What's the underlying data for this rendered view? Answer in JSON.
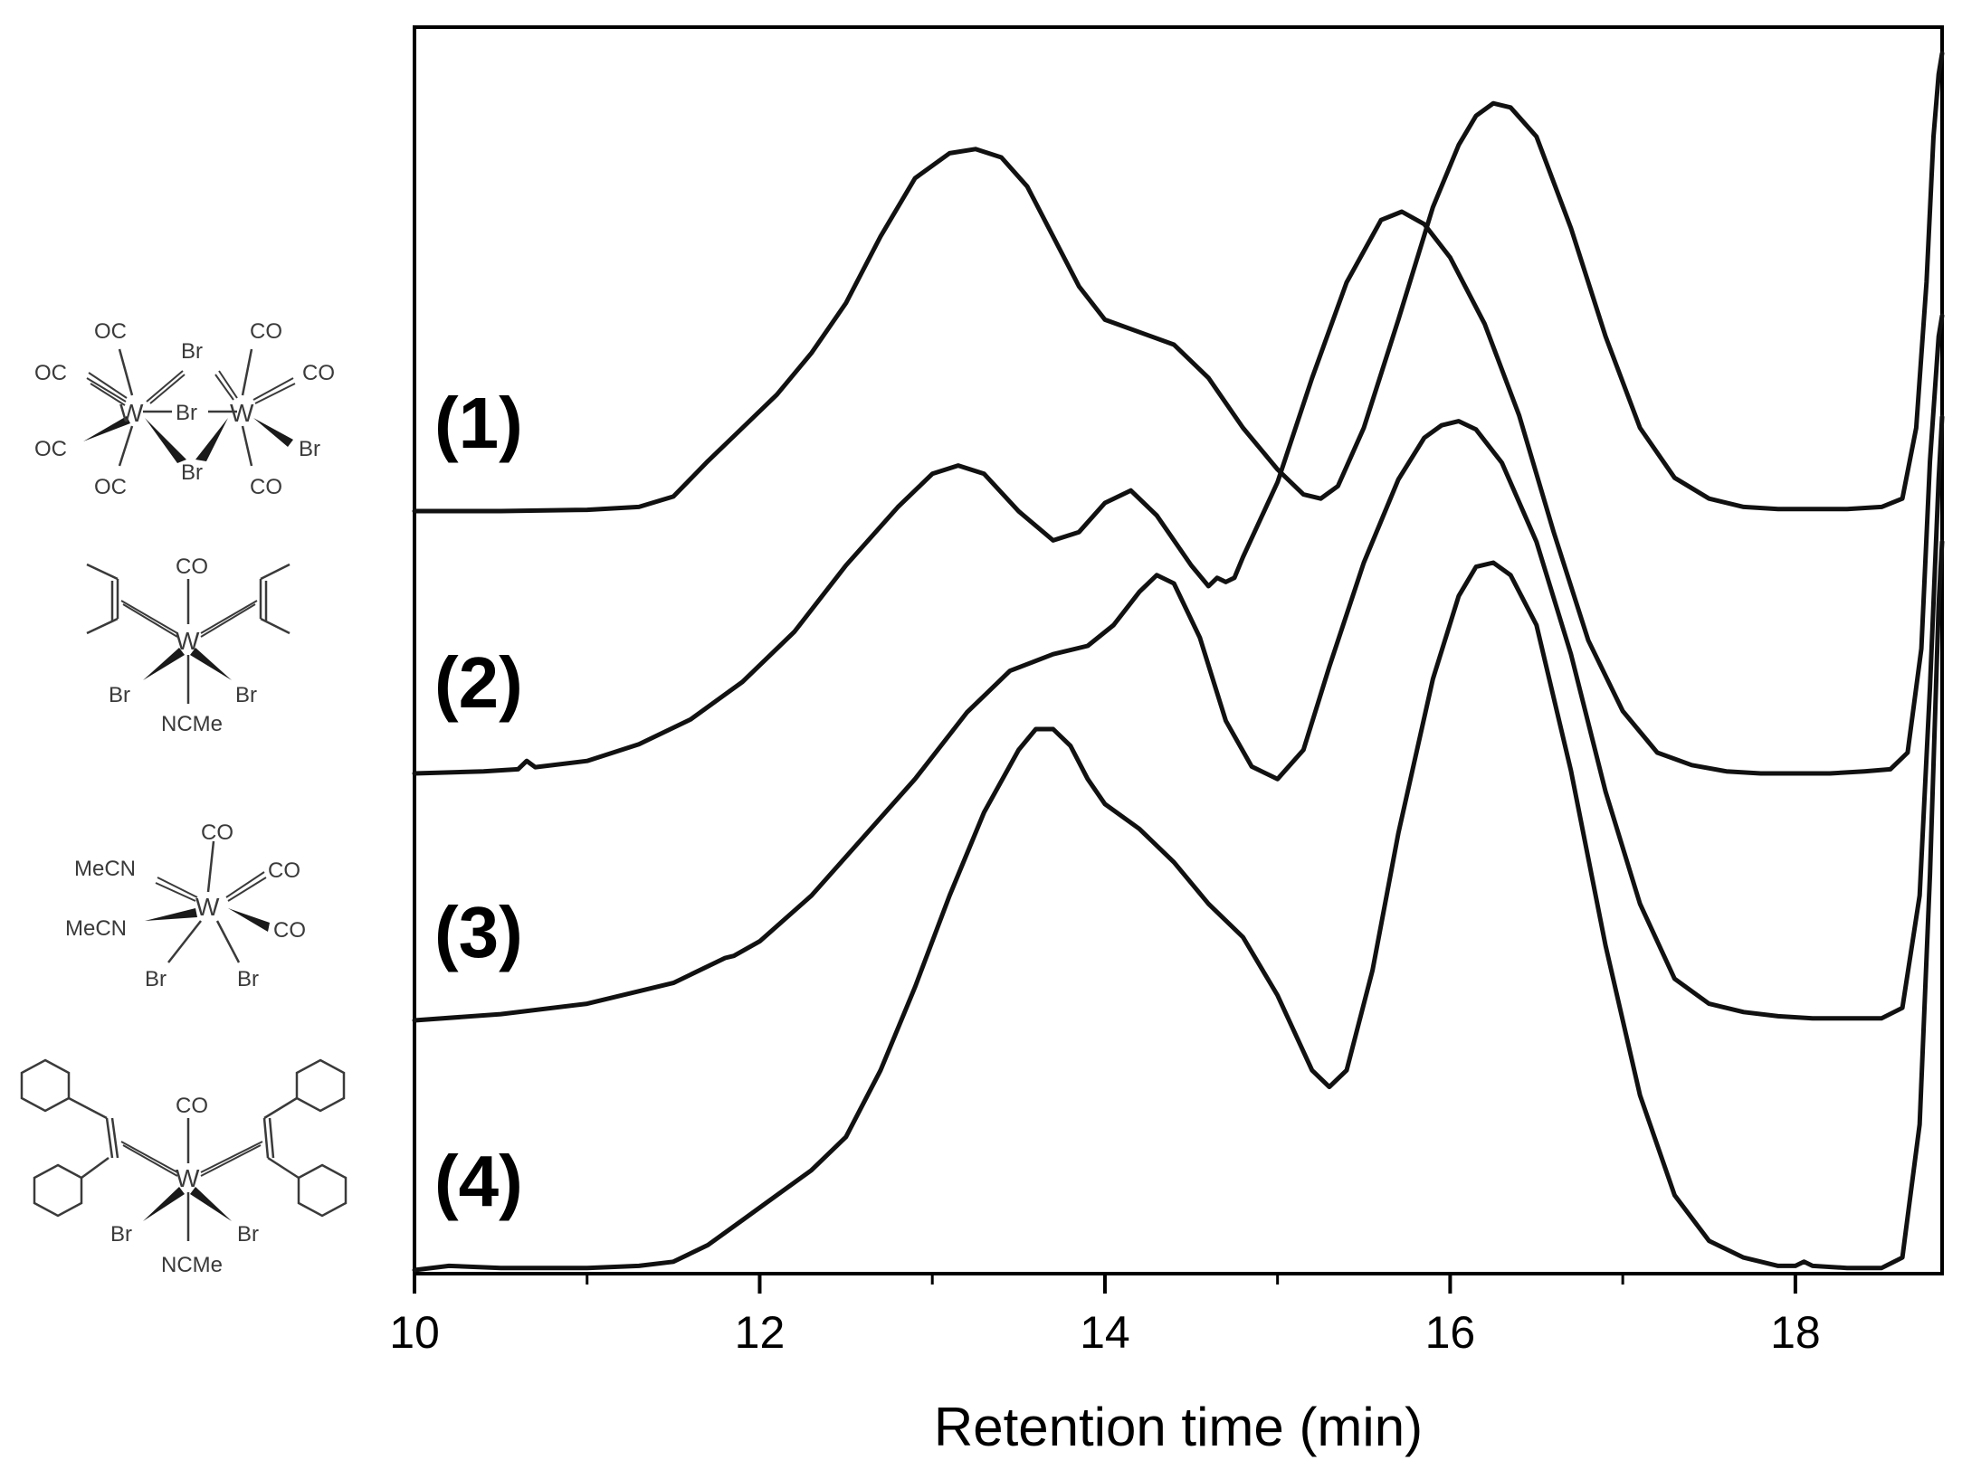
{
  "chart_data": {
    "type": "line",
    "xlabel": "Retention time (min)",
    "ylabel": "",
    "xlim": [
      10,
      18.85
    ],
    "x_ticks": [
      10,
      12,
      14,
      16,
      18
    ],
    "x_tick_labels": [
      "10",
      "12",
      "14",
      "16",
      "18"
    ],
    "x_minor_ticks": [
      11,
      13,
      15,
      17
    ],
    "grid": false,
    "y_axis_ticks": false,
    "series": [
      {
        "name": "(1)",
        "label": "(1)",
        "baseline": 0,
        "x": [
          10.0,
          10.5,
          11.0,
          11.3,
          11.5,
          11.7,
          11.9,
          12.1,
          12.3,
          12.5,
          12.7,
          12.9,
          13.1,
          13.25,
          13.4,
          13.55,
          13.7,
          13.85,
          14.0,
          14.2,
          14.4,
          14.6,
          14.8,
          15.0,
          15.15,
          15.25,
          15.35,
          15.5,
          15.7,
          15.9,
          16.05,
          16.15,
          16.25,
          16.35,
          16.5,
          16.7,
          16.9,
          17.1,
          17.3,
          17.5,
          17.7,
          17.9,
          18.1,
          18.3,
          18.5,
          18.62,
          18.7,
          18.76,
          18.8,
          18.83,
          18.85
        ],
        "y": [
          0.0,
          0.0,
          0.003,
          0.01,
          0.035,
          0.12,
          0.2,
          0.28,
          0.38,
          0.5,
          0.66,
          0.8,
          0.86,
          0.87,
          0.85,
          0.78,
          0.66,
          0.54,
          0.46,
          0.43,
          0.4,
          0.32,
          0.2,
          0.1,
          0.04,
          0.03,
          0.06,
          0.2,
          0.46,
          0.73,
          0.88,
          0.95,
          0.98,
          0.97,
          0.9,
          0.68,
          0.42,
          0.2,
          0.08,
          0.03,
          0.01,
          0.005,
          0.005,
          0.005,
          0.01,
          0.03,
          0.2,
          0.55,
          0.9,
          1.05,
          1.1
        ]
      },
      {
        "name": "(2)",
        "label": "(2)",
        "baseline": 0,
        "x": [
          10.0,
          10.4,
          10.6,
          10.65,
          10.7,
          11.0,
          11.3,
          11.6,
          11.9,
          12.2,
          12.5,
          12.8,
          13.0,
          13.15,
          13.3,
          13.5,
          13.7,
          13.85,
          14.0,
          14.15,
          14.3,
          14.5,
          14.6,
          14.65,
          14.7,
          14.75,
          14.8,
          15.0,
          15.2,
          15.4,
          15.6,
          15.72,
          15.85,
          16.0,
          16.2,
          16.4,
          16.6,
          16.8,
          17.0,
          17.2,
          17.4,
          17.6,
          17.8,
          18.0,
          18.2,
          18.4,
          18.55,
          18.65,
          18.73,
          18.78,
          18.83,
          18.85
        ],
        "y": [
          0.0,
          0.005,
          0.01,
          0.03,
          0.015,
          0.03,
          0.07,
          0.13,
          0.22,
          0.34,
          0.5,
          0.64,
          0.72,
          0.74,
          0.72,
          0.63,
          0.56,
          0.58,
          0.65,
          0.68,
          0.62,
          0.5,
          0.45,
          0.47,
          0.46,
          0.47,
          0.52,
          0.7,
          0.95,
          1.18,
          1.33,
          1.35,
          1.32,
          1.24,
          1.08,
          0.86,
          0.58,
          0.32,
          0.15,
          0.05,
          0.02,
          0.005,
          0.0,
          0.0,
          0.0,
          0.005,
          0.01,
          0.05,
          0.3,
          0.75,
          1.05,
          1.1
        ]
      },
      {
        "name": "(3)",
        "label": "(3)",
        "baseline": 0,
        "x": [
          10.0,
          10.5,
          11.0,
          11.5,
          11.8,
          11.85,
          12.0,
          12.3,
          12.6,
          12.9,
          13.2,
          13.45,
          13.7,
          13.9,
          14.05,
          14.2,
          14.3,
          14.4,
          14.55,
          14.7,
          14.85,
          15.0,
          15.15,
          15.3,
          15.5,
          15.7,
          15.85,
          15.95,
          16.05,
          16.15,
          16.3,
          16.5,
          16.7,
          16.9,
          17.1,
          17.3,
          17.5,
          17.7,
          17.9,
          18.1,
          18.3,
          18.5,
          18.62,
          18.72,
          18.78,
          18.83,
          18.85
        ],
        "y": [
          0.0,
          0.015,
          0.04,
          0.09,
          0.15,
          0.155,
          0.19,
          0.3,
          0.44,
          0.58,
          0.74,
          0.84,
          0.88,
          0.9,
          0.95,
          1.03,
          1.07,
          1.05,
          0.92,
          0.72,
          0.61,
          0.58,
          0.65,
          0.85,
          1.1,
          1.3,
          1.4,
          1.43,
          1.44,
          1.42,
          1.34,
          1.15,
          0.88,
          0.55,
          0.28,
          0.1,
          0.04,
          0.02,
          0.01,
          0.005,
          0.005,
          0.005,
          0.03,
          0.3,
          0.8,
          1.3,
          1.45
        ]
      },
      {
        "name": "(4)",
        "label": "(4)",
        "baseline": 0,
        "x": [
          10.0,
          10.2,
          10.5,
          11.0,
          11.3,
          11.5,
          11.7,
          11.9,
          12.1,
          12.3,
          12.5,
          12.7,
          12.9,
          13.1,
          13.3,
          13.5,
          13.6,
          13.7,
          13.8,
          13.9,
          14.0,
          14.2,
          14.4,
          14.6,
          14.8,
          15.0,
          15.2,
          15.3,
          15.4,
          15.55,
          15.7,
          15.9,
          16.05,
          16.15,
          16.25,
          16.35,
          16.5,
          16.7,
          16.9,
          17.1,
          17.3,
          17.5,
          17.7,
          17.9,
          18.0,
          18.05,
          18.1,
          18.3,
          18.5,
          18.62,
          18.72,
          18.78,
          18.83,
          18.85
        ],
        "y": [
          0.0,
          0.01,
          0.005,
          0.005,
          0.01,
          0.02,
          0.06,
          0.12,
          0.18,
          0.24,
          0.32,
          0.48,
          0.68,
          0.9,
          1.1,
          1.25,
          1.3,
          1.3,
          1.26,
          1.18,
          1.12,
          1.06,
          0.98,
          0.88,
          0.8,
          0.66,
          0.48,
          0.44,
          0.48,
          0.72,
          1.05,
          1.42,
          1.62,
          1.69,
          1.7,
          1.67,
          1.55,
          1.2,
          0.78,
          0.42,
          0.18,
          0.07,
          0.03,
          0.01,
          0.01,
          0.02,
          0.01,
          0.005,
          0.005,
          0.03,
          0.35,
          0.95,
          1.6,
          1.75
        ]
      }
    ]
  },
  "structures": {
    "s1": {
      "OC_top": "OC",
      "OC_left": "OC",
      "OC_lowleft": "OC",
      "OC_bottom": "OC",
      "CO_top": "CO",
      "CO_right": "CO",
      "CO_bottom": "CO",
      "Br_top": "Br",
      "Br_mid": "Br",
      "Br_bottom": "Br",
      "Br_right": "Br",
      "W1": "W",
      "W2": "W"
    },
    "s2": {
      "CO": "CO",
      "W": "W",
      "Br_left": "Br",
      "Br_right": "Br",
      "NCMe": "NCMe"
    },
    "s3": {
      "CO_top": "CO",
      "CO_right1": "CO",
      "CO_right2": "CO",
      "MeCN_1": "MeCN",
      "MeCN_2": "MeCN",
      "W": "W",
      "Br_left": "Br",
      "Br_right": "Br"
    },
    "s4": {
      "CO": "CO",
      "W": "W",
      "Br_left": "Br",
      "Br_right": "Br",
      "NCMe": "NCMe"
    }
  },
  "colors": {
    "trace": "#111111",
    "axis": "#000000",
    "structure": "#3a3a3a",
    "background": "#ffffff"
  }
}
